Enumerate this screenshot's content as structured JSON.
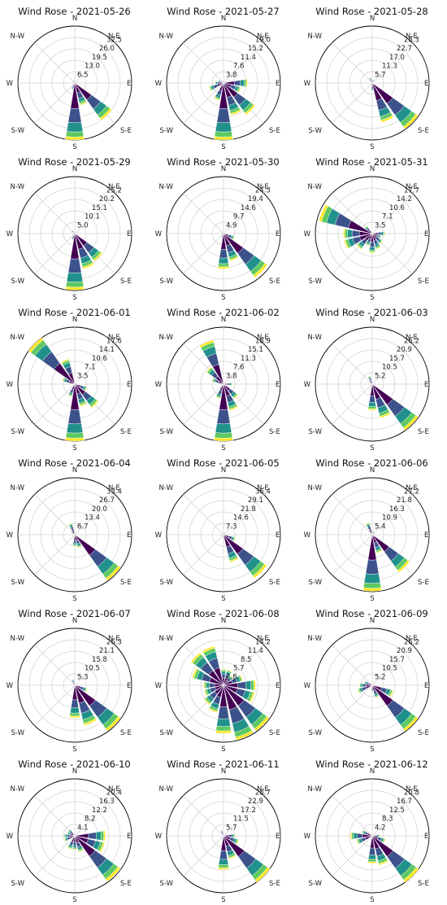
{
  "chart_data": [
    {
      "type": "windrose",
      "title": "Wind Rose - 2021-05-26",
      "radial_ticks": [
        "6.5",
        "13.0",
        "19.5",
        "26.0",
        "32.5"
      ],
      "rmax": 32.5,
      "directions": [
        {
          "angle": 135,
          "value": 26
        },
        {
          "angle": 157.5,
          "value": 13
        },
        {
          "angle": 180,
          "value": 32.5
        },
        {
          "angle": 202.5,
          "value": 4
        },
        {
          "angle": 315,
          "value": 2
        }
      ]
    },
    {
      "type": "windrose",
      "title": "Wind Rose - 2021-05-27",
      "radial_ticks": [
        "3.8",
        "7.6",
        "11.4",
        "15.2",
        "19.0"
      ],
      "rmax": 19.0,
      "directions": [
        {
          "angle": 90,
          "value": 8
        },
        {
          "angle": 112.5,
          "value": 6
        },
        {
          "angle": 135,
          "value": 13
        },
        {
          "angle": 157.5,
          "value": 11
        },
        {
          "angle": 180,
          "value": 19
        },
        {
          "angle": 202.5,
          "value": 6
        },
        {
          "angle": 247.5,
          "value": 5
        },
        {
          "angle": 270,
          "value": 3
        },
        {
          "angle": 292.5,
          "value": 2
        }
      ]
    },
    {
      "type": "windrose",
      "title": "Wind Rose - 2021-05-28",
      "radial_ticks": [
        "5.7",
        "11.3",
        "17.0",
        "22.7",
        "28.3"
      ],
      "rmax": 28.3,
      "directions": [
        {
          "angle": 135,
          "value": 28
        },
        {
          "angle": 157.5,
          "value": 20
        },
        {
          "angle": 180,
          "value": 4
        },
        {
          "angle": 337.5,
          "value": 3
        },
        {
          "angle": 22.5,
          "value": 2
        }
      ]
    },
    {
      "type": "windrose",
      "title": "Wind Rose - 2021-05-29",
      "radial_ticks": [
        "5.0",
        "10.1",
        "15.1",
        "20.2",
        "25.2"
      ],
      "rmax": 25.2,
      "directions": [
        {
          "angle": 135,
          "value": 15
        },
        {
          "angle": 157.5,
          "value": 16
        },
        {
          "angle": 180,
          "value": 25
        },
        {
          "angle": 202.5,
          "value": 3
        },
        {
          "angle": 315,
          "value": 2
        }
      ]
    },
    {
      "type": "windrose",
      "title": "Wind Rose - 2021-05-30",
      "radial_ticks": [
        "4.9",
        "9.7",
        "14.6",
        "19.4",
        "24.3"
      ],
      "rmax": 24.3,
      "directions": [
        {
          "angle": 112.5,
          "value": 5
        },
        {
          "angle": 135,
          "value": 23
        },
        {
          "angle": 157.5,
          "value": 12
        },
        {
          "angle": 180,
          "value": 15
        },
        {
          "angle": 202.5,
          "value": 2
        }
      ]
    },
    {
      "type": "windrose",
      "title": "Wind Rose - 2021-05-31",
      "radial_ticks": [
        "3.5",
        "7.1",
        "10.6",
        "14.2",
        "17.7"
      ],
      "rmax": 17.7,
      "directions": [
        {
          "angle": 292.5,
          "value": 17
        },
        {
          "angle": 270,
          "value": 9
        },
        {
          "angle": 247.5,
          "value": 9
        },
        {
          "angle": 225,
          "value": 6
        },
        {
          "angle": 202.5,
          "value": 4
        },
        {
          "angle": 180,
          "value": 6
        },
        {
          "angle": 157.5,
          "value": 5
        },
        {
          "angle": 135,
          "value": 4
        },
        {
          "angle": 112.5,
          "value": 3
        },
        {
          "angle": 90,
          "value": 4
        },
        {
          "angle": 315,
          "value": 3
        }
      ]
    },
    {
      "type": "windrose",
      "title": "Wind Rose - 2021-06-01",
      "radial_ticks": [
        "3.5",
        "7.1",
        "10.6",
        "14.1",
        "17.6"
      ],
      "rmax": 17.6,
      "directions": [
        {
          "angle": 315,
          "value": 17.6
        },
        {
          "angle": 337.5,
          "value": 8
        },
        {
          "angle": 292.5,
          "value": 4
        },
        {
          "angle": 135,
          "value": 9
        },
        {
          "angle": 157.5,
          "value": 7
        },
        {
          "angle": 180,
          "value": 17.6
        },
        {
          "angle": 202.5,
          "value": 4
        },
        {
          "angle": 112.5,
          "value": 4
        }
      ]
    },
    {
      "type": "windrose",
      "title": "Wind Rose - 2021-06-02",
      "radial_ticks": [
        "3.8",
        "7.6",
        "11.3",
        "15.1",
        "18.9"
      ],
      "rmax": 18.9,
      "directions": [
        {
          "angle": 337.5,
          "value": 15
        },
        {
          "angle": 315,
          "value": 7
        },
        {
          "angle": 292.5,
          "value": 4
        },
        {
          "angle": 135,
          "value": 6
        },
        {
          "angle": 157.5,
          "value": 9
        },
        {
          "angle": 180,
          "value": 18.9
        },
        {
          "angle": 202.5,
          "value": 5
        },
        {
          "angle": 90,
          "value": 3
        }
      ]
    },
    {
      "type": "windrose",
      "title": "Wind Rose - 2021-06-03",
      "radial_ticks": [
        "5.2",
        "10.5",
        "15.7",
        "20.9",
        "26.2"
      ],
      "rmax": 26.2,
      "directions": [
        {
          "angle": 135,
          "value": 26
        },
        {
          "angle": 157.5,
          "value": 16
        },
        {
          "angle": 180,
          "value": 12
        },
        {
          "angle": 337.5,
          "value": 4
        },
        {
          "angle": 315,
          "value": 2
        }
      ]
    },
    {
      "type": "windrose",
      "title": "Wind Rose - 2021-06-04",
      "radial_ticks": [
        "6.7",
        "13.4",
        "20.0",
        "26.7",
        "33.4"
      ],
      "rmax": 33.4,
      "directions": [
        {
          "angle": 135,
          "value": 33
        },
        {
          "angle": 157.5,
          "value": 8
        },
        {
          "angle": 180,
          "value": 7
        },
        {
          "angle": 337.5,
          "value": 7
        },
        {
          "angle": 315,
          "value": 3
        }
      ]
    },
    {
      "type": "windrose",
      "title": "Wind Rose - 2021-06-05",
      "radial_ticks": [
        "7.3",
        "14.6",
        "21.8",
        "29.1",
        "36.4"
      ],
      "rmax": 36.4,
      "directions": [
        {
          "angle": 135,
          "value": 34
        },
        {
          "angle": 157.5,
          "value": 18
        },
        {
          "angle": 112.5,
          "value": 8
        },
        {
          "angle": 180,
          "value": 3
        }
      ]
    },
    {
      "type": "windrose",
      "title": "Wind Rose - 2021-06-06",
      "radial_ticks": [
        "5.4",
        "10.9",
        "16.3",
        "21.8",
        "27.2"
      ],
      "rmax": 27.2,
      "directions": [
        {
          "angle": 135,
          "value": 22
        },
        {
          "angle": 157.5,
          "value": 9
        },
        {
          "angle": 180,
          "value": 27
        },
        {
          "angle": 337.5,
          "value": 6
        },
        {
          "angle": 22.5,
          "value": 2
        }
      ]
    },
    {
      "type": "windrose",
      "title": "Wind Rose - 2021-06-07",
      "radial_ticks": [
        "5.3",
        "10.5",
        "15.8",
        "21.1",
        "26.3"
      ],
      "rmax": 26.3,
      "directions": [
        {
          "angle": 135,
          "value": 26
        },
        {
          "angle": 157.5,
          "value": 19
        },
        {
          "angle": 180,
          "value": 15
        },
        {
          "angle": 112.5,
          "value": 6
        },
        {
          "angle": 337.5,
          "value": 3
        }
      ]
    },
    {
      "type": "windrose",
      "title": "Wind Rose - 2021-06-08",
      "radial_ticks": [
        "2.8",
        "5.7",
        "8.5",
        "11.4",
        "14.2"
      ],
      "rmax": 14.2,
      "directions": [
        {
          "angle": 0,
          "value": 4
        },
        {
          "angle": 22.5,
          "value": 4
        },
        {
          "angle": 45,
          "value": 3
        },
        {
          "angle": 67.5,
          "value": 5
        },
        {
          "angle": 90,
          "value": 8
        },
        {
          "angle": 112.5,
          "value": 8
        },
        {
          "angle": 135,
          "value": 14
        },
        {
          "angle": 157.5,
          "value": 14
        },
        {
          "angle": 180,
          "value": 12
        },
        {
          "angle": 202.5,
          "value": 7
        },
        {
          "angle": 225,
          "value": 6
        },
        {
          "angle": 247.5,
          "value": 5
        },
        {
          "angle": 270,
          "value": 5
        },
        {
          "angle": 292.5,
          "value": 8
        },
        {
          "angle": 315,
          "value": 10
        },
        {
          "angle": 337.5,
          "value": 10
        }
      ]
    },
    {
      "type": "windrose",
      "title": "Wind Rose - 2021-06-09",
      "radial_ticks": [
        "5.2",
        "10.5",
        "15.7",
        "20.9",
        "26.2"
      ],
      "rmax": 26.2,
      "directions": [
        {
          "angle": 135,
          "value": 26
        },
        {
          "angle": 112.5,
          "value": 10
        },
        {
          "angle": 157.5,
          "value": 6
        },
        {
          "angle": 180,
          "value": 3
        },
        {
          "angle": 247.5,
          "value": 7
        },
        {
          "angle": 270,
          "value": 6
        },
        {
          "angle": 292.5,
          "value": 4
        }
      ]
    },
    {
      "type": "windrose",
      "title": "Wind Rose - 2021-06-10",
      "radial_ticks": [
        "4.1",
        "8.2",
        "12.2",
        "16.3",
        "20.4"
      ],
      "rmax": 20.4,
      "directions": [
        {
          "angle": 135,
          "value": 20
        },
        {
          "angle": 112.5,
          "value": 11
        },
        {
          "angle": 90,
          "value": 11
        },
        {
          "angle": 157.5,
          "value": 6
        },
        {
          "angle": 180,
          "value": 5
        },
        {
          "angle": 202.5,
          "value": 5
        },
        {
          "angle": 247.5,
          "value": 4
        },
        {
          "angle": 270,
          "value": 4
        },
        {
          "angle": 292.5,
          "value": 3
        },
        {
          "angle": 315,
          "value": 3
        }
      ]
    },
    {
      "type": "windrose",
      "title": "Wind Rose - 2021-06-11",
      "radial_ticks": [
        "5.7",
        "11.5",
        "17.2",
        "22.9",
        "28.7"
      ],
      "rmax": 28.7,
      "directions": [
        {
          "angle": 135,
          "value": 28.7
        },
        {
          "angle": 157.5,
          "value": 12
        },
        {
          "angle": 180,
          "value": 17
        },
        {
          "angle": 112.5,
          "value": 8
        },
        {
          "angle": 90,
          "value": 6
        },
        {
          "angle": 337.5,
          "value": 3
        }
      ]
    },
    {
      "type": "windrose",
      "title": "Wind Rose - 2021-06-12",
      "radial_ticks": [
        "4.2",
        "8.3",
        "12.5",
        "16.7",
        "20.8"
      ],
      "rmax": 20.8,
      "directions": [
        {
          "angle": 135,
          "value": 20.8
        },
        {
          "angle": 157.5,
          "value": 11
        },
        {
          "angle": 180,
          "value": 10
        },
        {
          "angle": 270,
          "value": 8
        },
        {
          "angle": 247.5,
          "value": 6
        },
        {
          "angle": 292.5,
          "value": 4
        },
        {
          "angle": 112.5,
          "value": 5
        },
        {
          "angle": 90,
          "value": 3
        }
      ]
    }
  ],
  "compass": [
    "N",
    "N-E",
    "E",
    "S-E",
    "S",
    "S-W",
    "W",
    "N-W"
  ],
  "colors": [
    "#440154",
    "#3b528b",
    "#21918c",
    "#5ec962",
    "#fde725"
  ]
}
